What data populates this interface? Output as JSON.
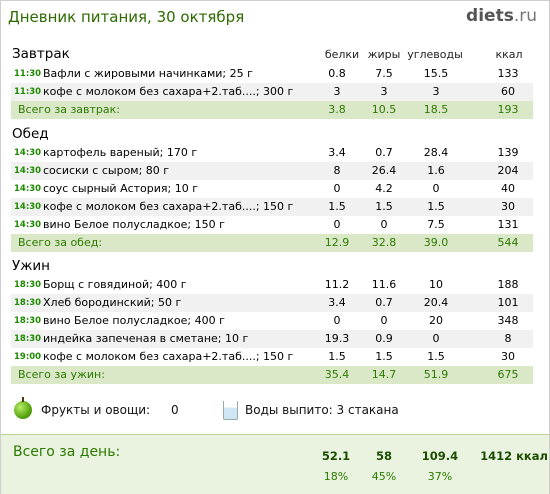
{
  "header": {
    "title": "Дневник питания, 30 октября",
    "logo_main": "diets",
    "logo_tld": ".ru"
  },
  "columns": {
    "protein": "белки",
    "fat": "жиры",
    "carbs": "углеводы",
    "kcal": "ккал"
  },
  "meals": [
    {
      "name": "Завтрак",
      "items": [
        {
          "time": "11:30",
          "name": "Вафли с жировыми начинками; 25 г",
          "protein": "0.8",
          "fat": "7.5",
          "carbs": "15.5",
          "kcal": "133"
        },
        {
          "time": "11:30",
          "name": "кофе с молоком без сахара+2.таб....; 300 г",
          "protein": "3",
          "fat": "3",
          "carbs": "3",
          "kcal": "60"
        }
      ],
      "total": {
        "label": "Всего за завтрак:",
        "protein": "3.8",
        "fat": "10.5",
        "carbs": "18.5",
        "kcal": "193"
      }
    },
    {
      "name": "Обед",
      "items": [
        {
          "time": "14:30",
          "name": "картофель вареный; 170 г",
          "protein": "3.4",
          "fat": "0.7",
          "carbs": "28.4",
          "kcal": "139"
        },
        {
          "time": "14:30",
          "name": "сосиски с сыром; 80 г",
          "protein": "8",
          "fat": "26.4",
          "carbs": "1.6",
          "kcal": "204"
        },
        {
          "time": "14:30",
          "name": "соус сырный Астория; 10 г",
          "protein": "0",
          "fat": "4.2",
          "carbs": "0",
          "kcal": "40"
        },
        {
          "time": "14:30",
          "name": "кофе с молоком без сахара+2.таб....; 150 г",
          "protein": "1.5",
          "fat": "1.5",
          "carbs": "1.5",
          "kcal": "30"
        },
        {
          "time": "14:30",
          "name": "вино Белое полусладкое; 150 г",
          "protein": "0",
          "fat": "0",
          "carbs": "7.5",
          "kcal": "131"
        }
      ],
      "total": {
        "label": "Всего за обед:",
        "protein": "12.9",
        "fat": "32.8",
        "carbs": "39.0",
        "kcal": "544"
      }
    },
    {
      "name": "Ужин",
      "items": [
        {
          "time": "18:30",
          "name": "Борщ с говядиной; 400 г",
          "protein": "11.2",
          "fat": "11.6",
          "carbs": "10",
          "kcal": "188"
        },
        {
          "time": "18:30",
          "name": "Хлеб бородинский; 50 г",
          "protein": "3.4",
          "fat": "0.7",
          "carbs": "20.4",
          "kcal": "101"
        },
        {
          "time": "18:30",
          "name": "вино Белое полусладкое; 400 г",
          "protein": "0",
          "fat": "0",
          "carbs": "20",
          "kcal": "348"
        },
        {
          "time": "18:30",
          "name": "индейка запеченая в сметане; 10 г",
          "protein": "19.3",
          "fat": "0.9",
          "carbs": "0",
          "kcal": "8"
        },
        {
          "time": "19:00",
          "name": "кофе с молоком без сахара+2.таб....; 150 г",
          "protein": "1.5",
          "fat": "1.5",
          "carbs": "1.5",
          "kcal": "30"
        }
      ],
      "total": {
        "label": "Всего за ужин:",
        "protein": "35.4",
        "fat": "14.7",
        "carbs": "51.9",
        "kcal": "675"
      }
    }
  ],
  "extras": {
    "fruits_label": "Фрукты и овощи:",
    "fruits_value": "0",
    "water_label": "Воды выпито: 3 стакана",
    "apple_icon": "apple-icon",
    "glass_icon": "water-glass-icon"
  },
  "day": {
    "label": "Всего за день:",
    "protein": "52.1",
    "fat": "58",
    "carbs": "109.4",
    "kcal": "1412 ккал",
    "protein_pct": "18%",
    "fat_pct": "45%",
    "carbs_pct": "37%"
  },
  "colors": {
    "accent_green": "#2b7a00",
    "total_bg": "#dbe8c8",
    "time_green": "#1e8a00"
  }
}
